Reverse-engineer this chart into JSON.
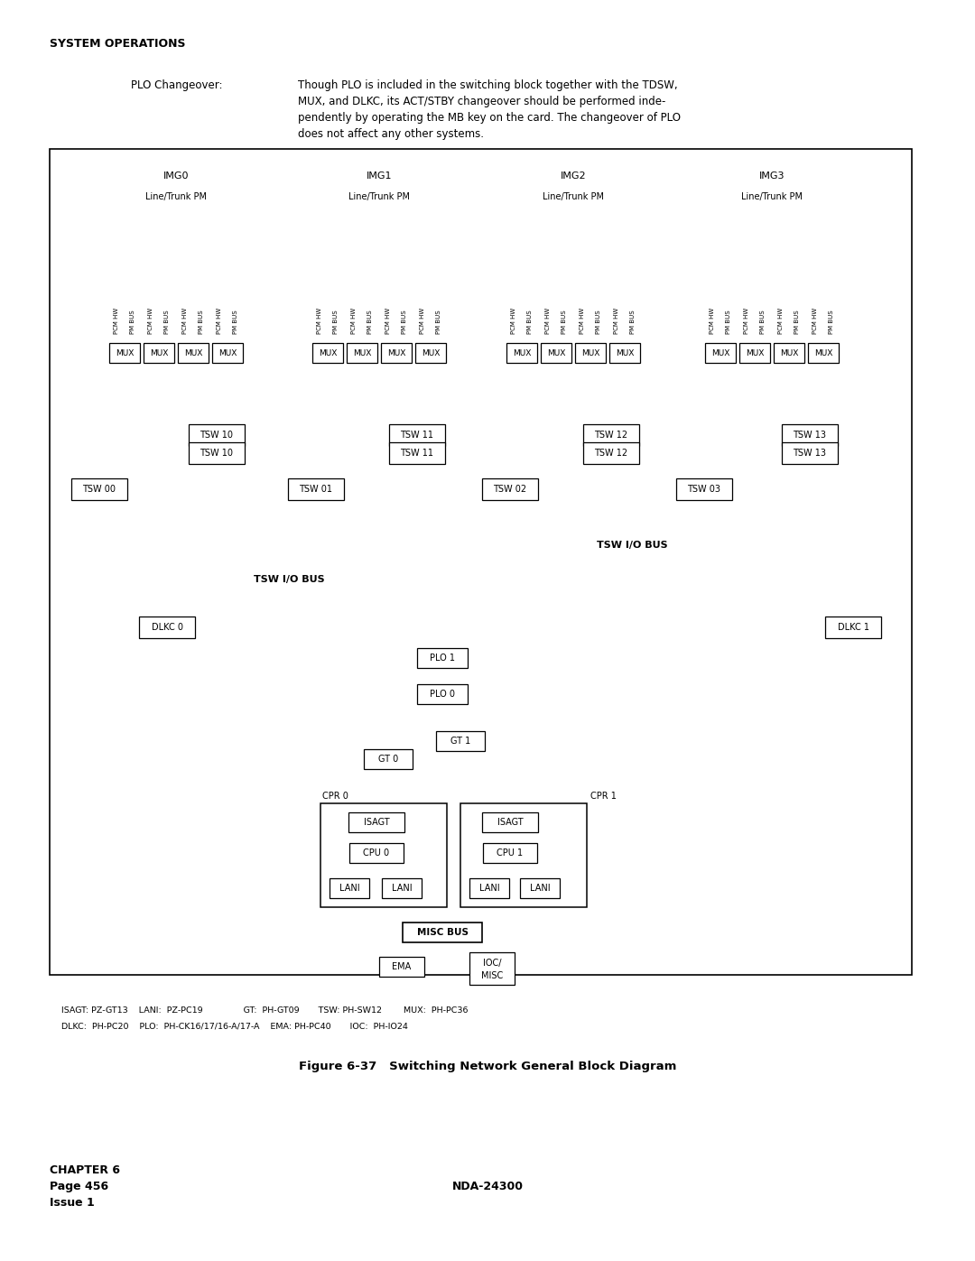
{
  "bg_color": "#ffffff",
  "text_color": "#000000",
  "title": "SYSTEM OPERATIONS",
  "plo_label": "PLO Changeover:",
  "plo_text_lines": [
    "Though PLO is included in the switching block together with the TDSW,",
    "MUX, and DLKC, its ACT/STBY changeover should be performed inde-",
    "pendently by operating the MB key on the card. The changeover of PLO",
    "does not affect any other systems."
  ],
  "figure_caption": "Figure 6-37   Switching Network General Block Diagram",
  "chapter_line1": "CHAPTER 6",
  "chapter_line2": "Page 456",
  "chapter_line3": "Issue 1",
  "footer_center": "NDA-24300",
  "img_labels": [
    "IMG0",
    "IMG1",
    "IMG2",
    "IMG3"
  ],
  "lt_label": "Line/Trunk PM",
  "tsw_top_labels": [
    "TSW 10",
    "TSW 11",
    "TSW 12",
    "TSW 13"
  ],
  "tsw_bot_labels": [
    "TSW 00",
    "TSW 01",
    "TSW 02",
    "TSW 03"
  ],
  "dlkc_labels": [
    "DLKC 0",
    "DLKC 1"
  ],
  "tsw_io_bus": "TSW I/O BUS",
  "plo_labels": [
    "PLO 1",
    "PLO 0"
  ],
  "gt_labels": [
    "GT 0",
    "GT 1"
  ],
  "cpr_labels": [
    "CPR 0",
    "CPR 1"
  ],
  "isagt_label": "ISAGT",
  "cpu_labels": [
    "CPU 0",
    "CPU 1"
  ],
  "lani_label": "LANI",
  "misc_bus_label": "MISC BUS",
  "ema_label": "EMA",
  "ioc_label": "IOC/\nMISC",
  "legend_line1": "ISAGT: PZ-GT13    LANI:  PZ-PC19               GT:  PH-GT09       TSW: PH-SW12        MUX:  PH-PC36",
  "legend_line2": "DLKC:  PH-PC20    PLO:  PH-CK16/17/16-A/17-A    EMA: PH-PC40       IOC:  PH-IO24"
}
